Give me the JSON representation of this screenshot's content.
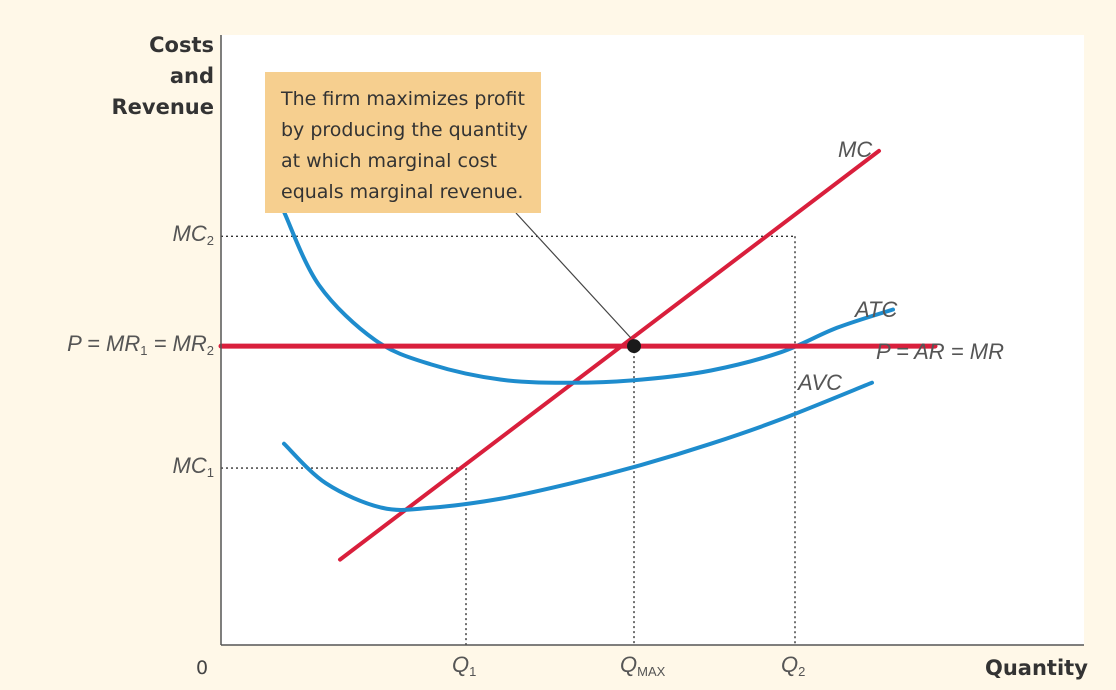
{
  "chart_data": {
    "type": "line",
    "title": "",
    "ylabel": [
      "Costs",
      "and",
      "Revenue"
    ],
    "xlabel": "Quantity",
    "origin_label": "0",
    "xlim": [
      0,
      10
    ],
    "ylim": [
      0,
      10
    ],
    "grid": false,
    "annotation": [
      "The firm maximizes profit",
      "by producing the quantity",
      "at which marginal cost",
      "equals marginal revenue."
    ],
    "y_ticks": {
      "MC2": {
        "label": "MC",
        "sub": "2",
        "value": 6.7
      },
      "P": {
        "label": "P = MR",
        "sub1": "1",
        "mid": " = MR",
        "sub2": "2",
        "value": 4.9
      },
      "MC1": {
        "label": "MC",
        "sub": "1",
        "value": 2.9
      }
    },
    "x_ticks": {
      "Q1": {
        "label": "Q",
        "sub": "1",
        "value": 3.5
      },
      "QMAX": {
        "label": "Q",
        "sub": "MAX",
        "value": 5.9
      },
      "Q2": {
        "label": "Q",
        "sub": "2",
        "value": 8.2
      }
    },
    "series": [
      {
        "name": "MC",
        "label": "MC",
        "color": "#d91f3c",
        "x": [
          1.7,
          9.4
        ],
        "y": [
          1.4,
          8.1
        ]
      },
      {
        "name": "ATC",
        "label": "ATC",
        "color": "#1e8ccd",
        "x": [
          0.9,
          1.4,
          2.2,
          3.0,
          4.0,
          5.0,
          6.0,
          7.0,
          8.0,
          8.8,
          9.6
        ],
        "y": [
          7.1,
          5.9,
          5.0,
          4.6,
          4.35,
          4.3,
          4.35,
          4.5,
          4.8,
          5.2,
          5.5
        ]
      },
      {
        "name": "AVC",
        "label": "AVC",
        "color": "#1e8ccd",
        "x": [
          0.9,
          1.5,
          2.3,
          3.0,
          4.0,
          5.0,
          6.0,
          7.0,
          8.0,
          9.3
        ],
        "y": [
          3.3,
          2.65,
          2.25,
          2.25,
          2.4,
          2.65,
          2.95,
          3.3,
          3.7,
          4.3
        ]
      },
      {
        "name": "P = AR = MR",
        "label": "P = AR = MR",
        "color": "#d91f3c",
        "x": [
          0,
          10.2
        ],
        "y": [
          4.9,
          4.9
        ]
      }
    ],
    "max_point": {
      "x": 5.9,
      "y": 4.9
    }
  },
  "colors": {
    "background": "#fff8e8",
    "axis": "#555555",
    "dotted": "#333333",
    "note_fill": "#f6cf8f",
    "dot": "#1a1a1a"
  }
}
